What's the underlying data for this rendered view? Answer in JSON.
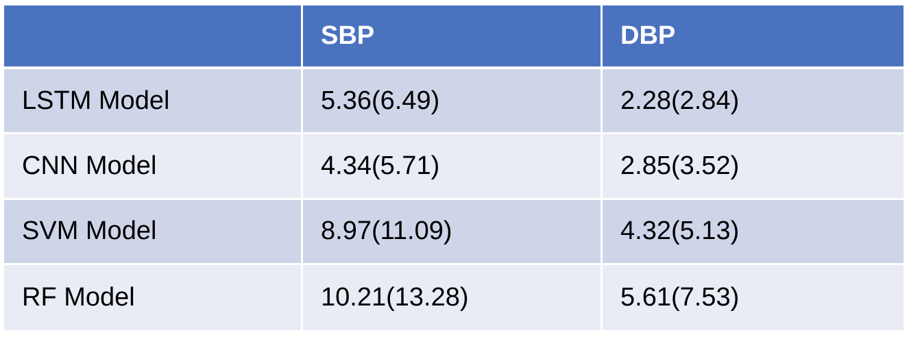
{
  "table": {
    "columns": [
      "",
      "SBP",
      "DBP"
    ],
    "rows": [
      {
        "model": "LSTM Model",
        "sbp": "5.36(6.49)",
        "dbp": "2.28(2.84)"
      },
      {
        "model": "CNN Model",
        "sbp": "4.34(5.71)",
        "dbp": "2.85(3.52)"
      },
      {
        "model": "SVM Model",
        "sbp": "8.97(11.09)",
        "dbp": "4.32(5.13)"
      },
      {
        "model": "RF Model",
        "sbp": "10.21(13.28)",
        "dbp": "5.61(7.53)"
      }
    ]
  },
  "colors": {
    "header_bg": "#4a72bf",
    "row_odd_bg": "#cfd5e9",
    "row_even_bg": "#e9ebf5",
    "header_text": "#ffffff",
    "body_text": "#000000"
  }
}
